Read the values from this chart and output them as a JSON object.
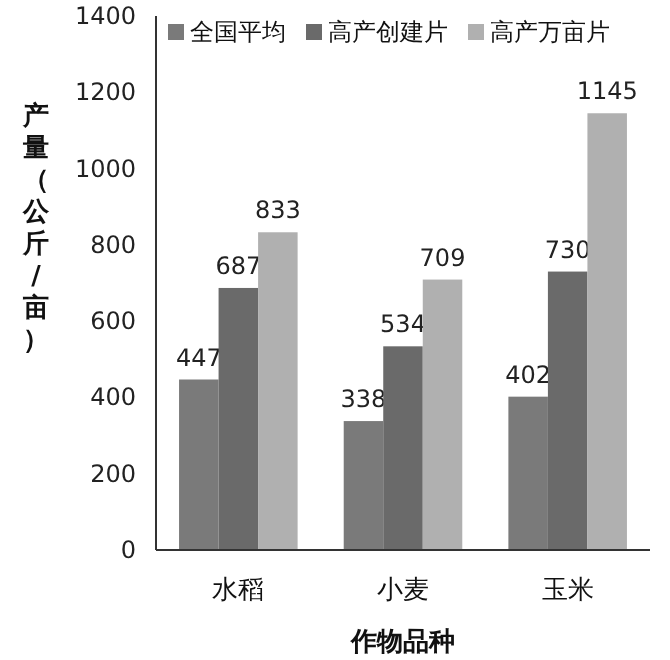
{
  "chart_data": {
    "type": "bar",
    "xlabel": "作物品种",
    "ylabel": "产量（公斤/亩）",
    "categories": [
      "水稻",
      "小麦",
      "玉米"
    ],
    "series": [
      {
        "name": "全国平均",
        "color": "#7a7a7a",
        "values": [
          447,
          338,
          402
        ]
      },
      {
        "name": "高产创建片",
        "color": "#6a6a6a",
        "values": [
          687,
          534,
          730
        ]
      },
      {
        "name": "高产万亩片",
        "color": "#b0b0b0",
        "values": [
          833,
          709,
          1145
        ]
      }
    ],
    "ylim": [
      0,
      1400
    ],
    "yticks": [
      0,
      200,
      400,
      600,
      800,
      1000,
      1200,
      1400
    ],
    "data_labels": true,
    "legend": "top",
    "grid": false
  }
}
